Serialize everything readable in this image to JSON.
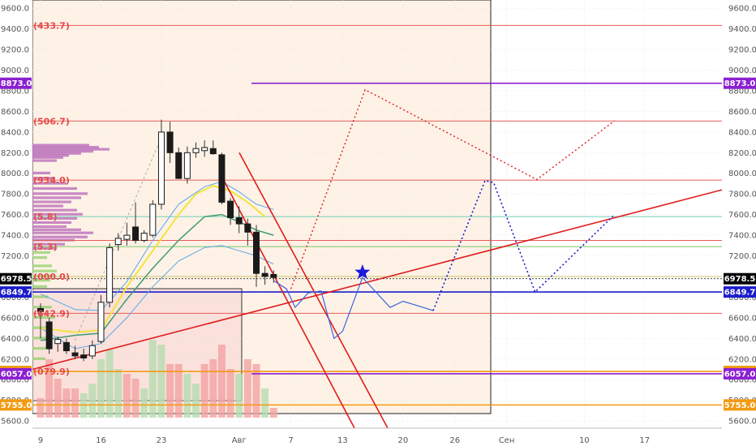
{
  "chart_data": {
    "type": "candlestick",
    "title": "",
    "ylim": [
      5530,
      9680
    ],
    "y_ticks": [
      5600,
      5800,
      6000,
      6200,
      6400,
      6600,
      6800,
      7000,
      7200,
      7400,
      7600,
      7800,
      8000,
      8200,
      8400,
      8600,
      8800,
      9000,
      9200,
      9400,
      9600
    ],
    "x_ticks": [
      {
        "label": "9",
        "day": 9
      },
      {
        "label": "16",
        "day": 16
      },
      {
        "label": "23",
        "day": 23
      },
      {
        "label": "Авг",
        "day": 32
      },
      {
        "label": "7",
        "day": 38
      },
      {
        "label": "13",
        "day": 44
      },
      {
        "label": "20",
        "day": 51
      },
      {
        "label": "26",
        "day": 57
      },
      {
        "label": "Сен",
        "day": 63
      },
      {
        "label": "10",
        "day": 72
      },
      {
        "label": "17",
        "day": 79
      }
    ],
    "candles": [
      {
        "day": 9,
        "open": 6690,
        "high": 6740,
        "low": 6400,
        "close": 6660
      },
      {
        "day": 10,
        "open": 6560,
        "high": 6600,
        "low": 6250,
        "close": 6300
      },
      {
        "day": 11,
        "open": 6350,
        "high": 6420,
        "low": 6270,
        "close": 6390
      },
      {
        "day": 12,
        "open": 6360,
        "high": 6400,
        "low": 6250,
        "close": 6280
      },
      {
        "day": 13,
        "open": 6260,
        "high": 6330,
        "low": 6200,
        "close": 6230
      },
      {
        "day": 14,
        "open": 6240,
        "high": 6300,
        "low": 6180,
        "close": 6210
      },
      {
        "day": 15,
        "open": 6230,
        "high": 6380,
        "low": 6200,
        "close": 6330
      },
      {
        "day": 16,
        "open": 6370,
        "high": 6820,
        "low": 6350,
        "close": 6750
      },
      {
        "day": 17,
        "open": 6750,
        "high": 7320,
        "low": 6700,
        "close": 7280
      },
      {
        "day": 18,
        "open": 7310,
        "high": 7420,
        "low": 7250,
        "close": 7370
      },
      {
        "day": 19,
        "open": 7360,
        "high": 7520,
        "low": 7300,
        "close": 7400
      },
      {
        "day": 20,
        "open": 7480,
        "high": 7720,
        "low": 7320,
        "close": 7350
      },
      {
        "day": 21,
        "open": 7350,
        "high": 7450,
        "low": 7330,
        "close": 7420
      },
      {
        "day": 22,
        "open": 7400,
        "high": 7740,
        "low": 7380,
        "close": 7700
      },
      {
        "day": 23,
        "open": 7700,
        "high": 8520,
        "low": 7650,
        "close": 8400
      },
      {
        "day": 24,
        "open": 8400,
        "high": 8500,
        "low": 8100,
        "close": 8200
      },
      {
        "day": 25,
        "open": 8200,
        "high": 8250,
        "low": 7950,
        "close": 7950
      },
      {
        "day": 26,
        "open": 7950,
        "high": 8260,
        "low": 7900,
        "close": 8200
      },
      {
        "day": 27,
        "open": 8200,
        "high": 8300,
        "low": 8150,
        "close": 8240
      },
      {
        "day": 28,
        "open": 8220,
        "high": 8320,
        "low": 8160,
        "close": 8250
      },
      {
        "day": 29,
        "open": 8240,
        "high": 8320,
        "low": 8180,
        "close": 8190
      },
      {
        "day": 30,
        "open": 8180,
        "high": 8200,
        "low": 7700,
        "close": 7720
      },
      {
        "day": 31,
        "open": 7730,
        "high": 7760,
        "low": 7500,
        "close": 7570
      },
      {
        "day": 32,
        "open": 7570,
        "high": 7680,
        "low": 7420,
        "close": 7510
      },
      {
        "day": 33,
        "open": 7510,
        "high": 7560,
        "low": 7300,
        "close": 7430
      },
      {
        "day": 34,
        "open": 7430,
        "high": 7500,
        "low": 6900,
        "close": 7030
      },
      {
        "day": 35,
        "open": 7030,
        "high": 7100,
        "low": 6920,
        "close": 7000
      },
      {
        "day": 36,
        "open": 7020,
        "high": 7060,
        "low": 6940,
        "close": 6990
      }
    ],
    "fib_labels": [
      {
        "text": "(433.7)",
        "price": 9433.7
      },
      {
        "text": "(506.7)",
        "price": 8506.7
      },
      {
        "text": "(934.0)",
        "price": 7934.0
      },
      {
        "text": "(5.8)",
        "price": 7580
      },
      {
        "text": "(5.3)",
        "price": 7290
      },
      {
        "text": "(000.0)",
        "price": 7000
      },
      {
        "text": "(642.9)",
        "price": 6642.9
      },
      {
        "text": "(079.9)",
        "price": 6079.9
      }
    ],
    "horizontal_levels": [
      {
        "price": 9433.7,
        "color": "#e45c5c"
      },
      {
        "price": 8506.7,
        "color": "#e45c5c"
      },
      {
        "price": 7934.0,
        "color": "#e45c5c"
      },
      {
        "price": 7580,
        "color": "#6fd0b5"
      },
      {
        "price": 7350,
        "color": "#e45c5c"
      },
      {
        "price": 7290,
        "color": "#7cc76a"
      },
      {
        "price": 7000,
        "color": "#c9c36a"
      },
      {
        "price": 6642.9,
        "color": "#e45c5c"
      }
    ],
    "price_tags": [
      {
        "text": "8873.0",
        "price": 8873,
        "color": "#8b1fd1"
      },
      {
        "text": "6978.5",
        "price": 6978.5,
        "color": "#000000"
      },
      {
        "text": "6849.7",
        "price": 6849.7,
        "color": "#1c1ccc"
      },
      {
        "text": "6079.9",
        "price": 6079.9,
        "color": "#f39a12"
      },
      {
        "text": "6057.0",
        "price": 6057,
        "color": "#8b1fd1"
      },
      {
        "text": "5755.0",
        "price": 5755,
        "color": "#f39a12"
      }
    ],
    "forecast_blue_solid": [
      [
        36,
        6960
      ],
      [
        37.5,
        6880
      ],
      [
        38.5,
        6700
      ],
      [
        40,
        6840
      ],
      [
        41.5,
        6860
      ],
      [
        43,
        6400
      ],
      [
        44,
        6470
      ],
      [
        46.3,
        6990
      ],
      [
        49.5,
        6700
      ],
      [
        51,
        6760
      ],
      [
        54.5,
        6670
      ]
    ],
    "forecast_red_dotted": [
      [
        38,
        6880
      ],
      [
        46.6,
        8810
      ],
      [
        47.3,
        8780
      ],
      [
        66.5,
        7940
      ],
      [
        75.5,
        8510
      ]
    ],
    "forecast_blue_dotted": [
      [
        54.5,
        6670
      ],
      [
        60.5,
        7930
      ],
      [
        61.5,
        7910
      ],
      [
        66.3,
        6850
      ],
      [
        75.5,
        7600
      ]
    ],
    "star_marker": {
      "day": 46.3,
      "price": 7040,
      "color": "#1a1ae0"
    }
  }
}
